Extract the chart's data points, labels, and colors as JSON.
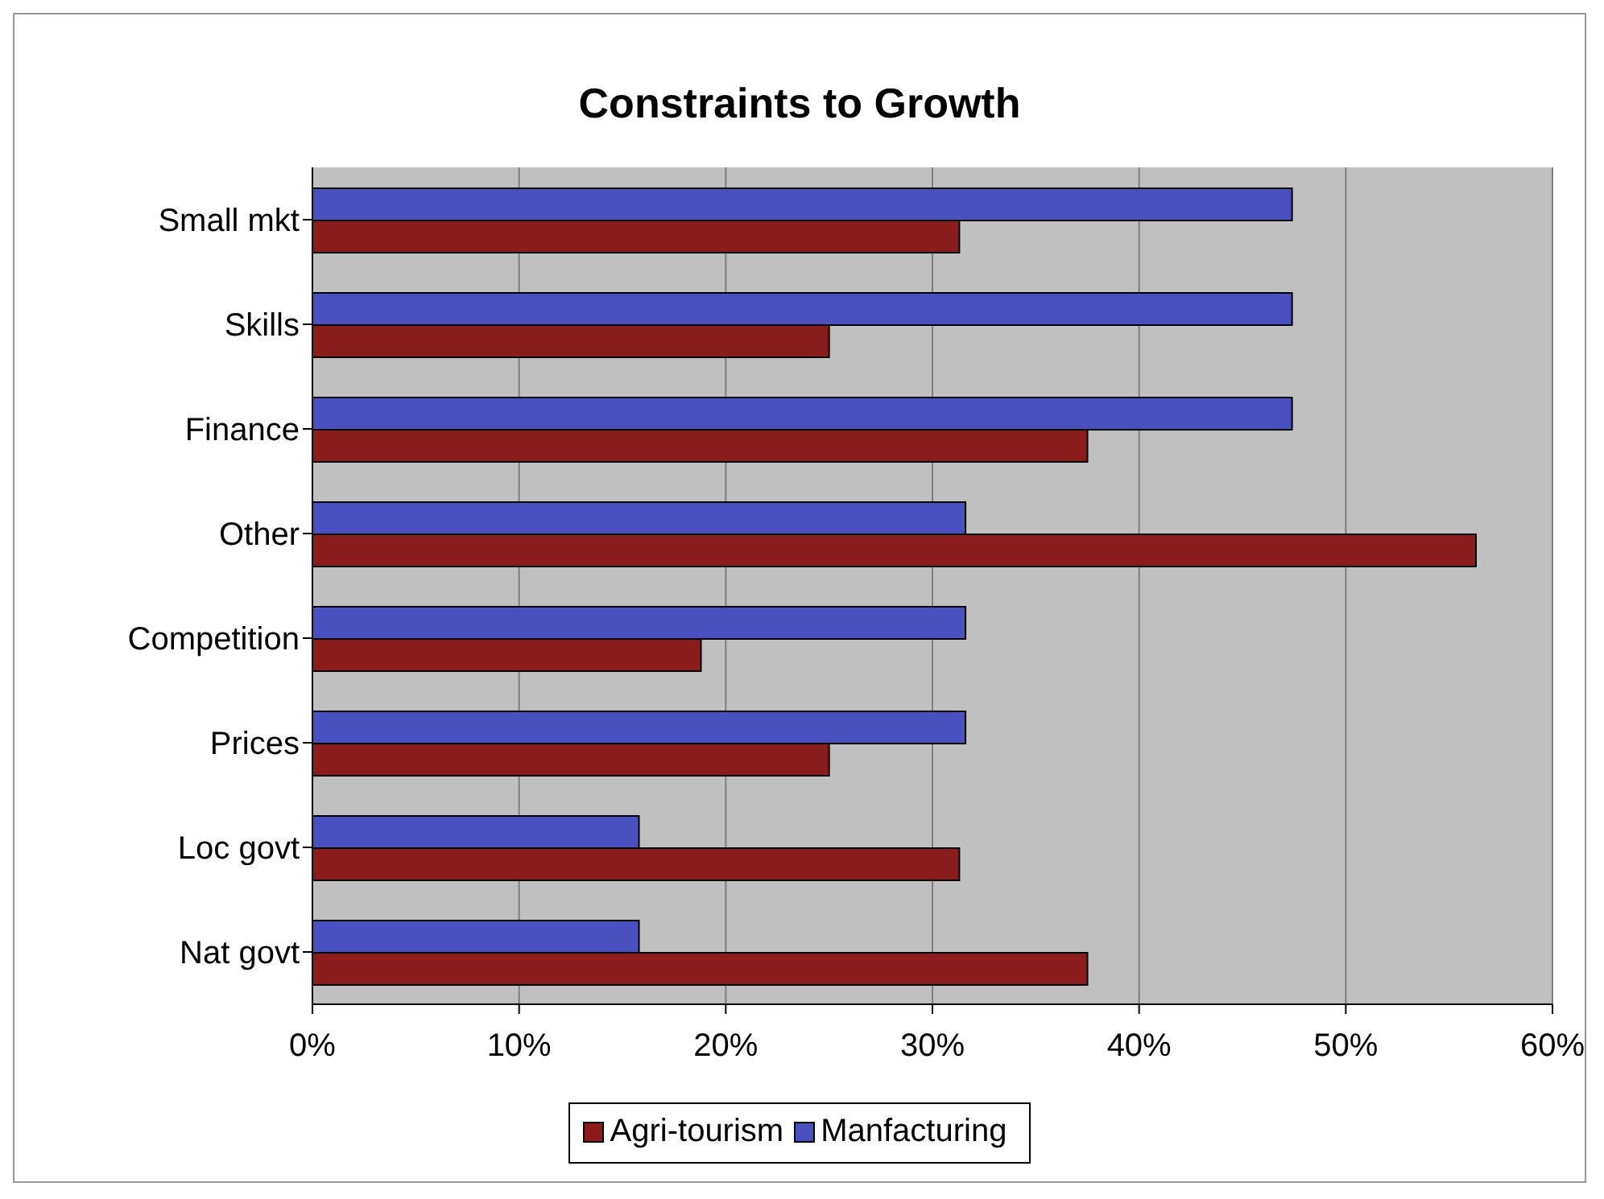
{
  "chart_data": {
    "type": "bar",
    "orientation": "horizontal",
    "title": "Constraints to Growth",
    "categories": [
      "Small mkt",
      "Skills",
      "Finance",
      "Other",
      "Competition",
      "Prices",
      "Loc govt",
      "Nat govt"
    ],
    "series": [
      {
        "name": "Agri-tourism",
        "color": "#8b1c1c",
        "values": [
          31.3,
          25.0,
          37.5,
          56.3,
          18.8,
          25.0,
          31.3,
          37.5
        ]
      },
      {
        "name": "Manfacturing",
        "color": "#4a50c0",
        "values": [
          47.4,
          47.4,
          47.4,
          31.6,
          31.6,
          31.6,
          15.8,
          15.8
        ]
      }
    ],
    "xlim": [
      0,
      60
    ],
    "xticks": [
      {
        "value": 0,
        "label": "0%"
      },
      {
        "value": 10,
        "label": "10%"
      },
      {
        "value": 20,
        "label": "20%"
      },
      {
        "value": 30,
        "label": "30%"
      },
      {
        "value": 40,
        "label": "40%"
      },
      {
        "value": 50,
        "label": "50%"
      },
      {
        "value": 60,
        "label": "60%"
      }
    ],
    "grid": "x",
    "legend": "bottom"
  }
}
